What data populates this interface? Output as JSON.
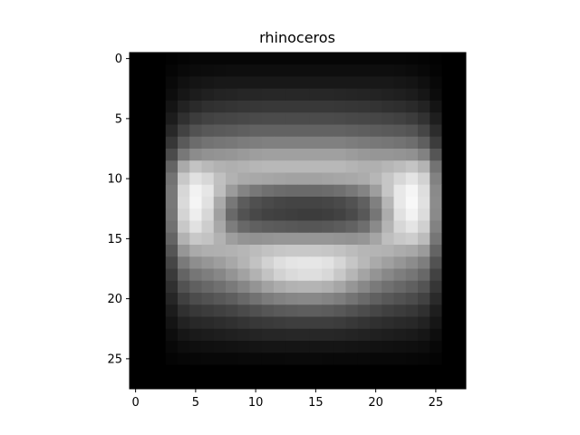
{
  "chart_data": {
    "type": "heatmap",
    "title": "rhinoceros",
    "xlabel": "",
    "ylabel": "",
    "colormap": "gray",
    "grid": false,
    "legend": "none",
    "xlim": [
      -0.5,
      27.5
    ],
    "ylim": [
      27.5,
      -0.5
    ],
    "x_ticks": [
      0,
      5,
      10,
      15,
      20,
      25
    ],
    "y_ticks": [
      0,
      5,
      10,
      15,
      20,
      25
    ],
    "rows": 28,
    "cols": 28,
    "value_range": [
      0,
      255
    ],
    "values": [
      [
        0,
        0,
        0,
        2,
        4,
        6,
        6,
        6,
        6,
        6,
        6,
        6,
        6,
        6,
        6,
        6,
        6,
        6,
        6,
        6,
        6,
        6,
        6,
        5,
        4,
        2,
        0,
        0
      ],
      [
        0,
        0,
        0,
        5,
        9,
        11,
        12,
        13,
        14,
        14,
        14,
        14,
        14,
        14,
        14,
        14,
        14,
        14,
        14,
        14,
        14,
        14,
        13,
        11,
        8,
        4,
        0,
        0
      ],
      [
        0,
        0,
        0,
        9,
        16,
        20,
        22,
        24,
        24,
        24,
        24,
        24,
        24,
        24,
        24,
        24,
        24,
        24,
        24,
        24,
        24,
        24,
        22,
        20,
        15,
        8,
        0,
        0
      ],
      [
        0,
        0,
        0,
        13,
        22,
        28,
        32,
        35,
        36,
        38,
        38,
        39,
        39,
        39,
        39,
        39,
        39,
        38,
        37,
        36,
        35,
        33,
        31,
        28,
        22,
        12,
        0,
        0
      ],
      [
        0,
        0,
        0,
        20,
        34,
        42,
        48,
        50,
        52,
        54,
        55,
        56,
        56,
        56,
        56,
        56,
        56,
        55,
        54,
        53,
        51,
        48,
        46,
        42,
        35,
        20,
        0,
        0
      ],
      [
        0,
        0,
        0,
        28,
        48,
        60,
        66,
        69,
        70,
        72,
        74,
        75,
        75,
        75,
        75,
        75,
        75,
        74,
        72,
        71,
        70,
        68,
        65,
        60,
        50,
        30,
        0,
        0
      ],
      [
        0,
        0,
        0,
        40,
        66,
        82,
        88,
        90,
        92,
        95,
        98,
        98,
        98,
        98,
        98,
        98,
        98,
        98,
        96,
        94,
        92,
        90,
        88,
        84,
        70,
        44,
        0,
        0
      ],
      [
        0,
        0,
        0,
        55,
        90,
        108,
        115,
        118,
        120,
        124,
        126,
        128,
        128,
        128,
        128,
        128,
        128,
        128,
        125,
        122,
        120,
        118,
        115,
        110,
        95,
        60,
        0,
        0
      ],
      [
        0,
        0,
        0,
        75,
        120,
        140,
        146,
        148,
        150,
        154,
        158,
        160,
        160,
        160,
        160,
        160,
        160,
        160,
        156,
        152,
        150,
        150,
        148,
        145,
        130,
        85,
        0,
        0
      ],
      [
        0,
        0,
        0,
        100,
        170,
        195,
        185,
        178,
        175,
        178,
        182,
        184,
        184,
        184,
        184,
        184,
        184,
        184,
        180,
        176,
        176,
        182,
        188,
        196,
        180,
        115,
        0,
        0
      ],
      [
        0,
        0,
        0,
        115,
        200,
        225,
        215,
        192,
        178,
        170,
        168,
        166,
        164,
        162,
        162,
        162,
        164,
        166,
        168,
        172,
        182,
        198,
        215,
        228,
        210,
        130,
        0,
        0
      ],
      [
        0,
        0,
        0,
        120,
        215,
        242,
        230,
        190,
        155,
        132,
        120,
        112,
        108,
        106,
        106,
        106,
        108,
        112,
        120,
        132,
        158,
        198,
        232,
        245,
        222,
        138,
        0,
        0
      ],
      [
        0,
        0,
        0,
        120,
        218,
        245,
        225,
        170,
        120,
        92,
        80,
        74,
        70,
        68,
        68,
        68,
        70,
        74,
        82,
        96,
        128,
        182,
        232,
        248,
        225,
        140,
        0,
        0
      ],
      [
        0,
        0,
        0,
        118,
        212,
        238,
        215,
        160,
        105,
        82,
        72,
        66,
        64,
        62,
        60,
        60,
        62,
        66,
        74,
        88,
        118,
        172,
        225,
        242,
        220,
        138,
        0,
        0
      ],
      [
        0,
        0,
        0,
        112,
        200,
        225,
        205,
        168,
        125,
        104,
        96,
        92,
        90,
        88,
        86,
        86,
        88,
        92,
        98,
        110,
        138,
        180,
        215,
        228,
        208,
        130,
        0,
        0
      ],
      [
        0,
        0,
        0,
        100,
        178,
        200,
        195,
        178,
        158,
        148,
        146,
        148,
        150,
        150,
        150,
        150,
        150,
        148,
        146,
        150,
        165,
        190,
        200,
        205,
        188,
        118,
        0,
        0
      ],
      [
        0,
        0,
        0,
        85,
        150,
        170,
        175,
        176,
        178,
        182,
        188,
        194,
        198,
        200,
        200,
        200,
        198,
        194,
        188,
        182,
        180,
        178,
        172,
        168,
        155,
        100,
        0,
        0
      ],
      [
        0,
        0,
        0,
        70,
        122,
        142,
        150,
        158,
        168,
        180,
        194,
        210,
        222,
        228,
        230,
        230,
        226,
        214,
        198,
        184,
        170,
        160,
        150,
        140,
        126,
        82,
        0,
        0
      ],
      [
        0,
        0,
        0,
        58,
        100,
        118,
        126,
        135,
        148,
        162,
        178,
        195,
        210,
        218,
        222,
        222,
        216,
        200,
        182,
        164,
        148,
        136,
        126,
        118,
        104,
        66,
        0,
        0
      ],
      [
        0,
        0,
        0,
        48,
        82,
        96,
        104,
        112,
        122,
        134,
        148,
        162,
        172,
        178,
        180,
        180,
        176,
        166,
        150,
        136,
        122,
        112,
        104,
        96,
        84,
        54,
        0,
        0
      ],
      [
        0,
        0,
        0,
        38,
        64,
        76,
        82,
        88,
        94,
        104,
        114,
        124,
        130,
        134,
        136,
        136,
        132,
        126,
        116,
        106,
        96,
        88,
        82,
        76,
        66,
        42,
        0,
        0
      ],
      [
        0,
        0,
        0,
        28,
        48,
        56,
        60,
        64,
        68,
        74,
        80,
        86,
        90,
        92,
        94,
        94,
        92,
        88,
        82,
        76,
        70,
        64,
        60,
        56,
        48,
        30,
        0,
        0
      ],
      [
        0,
        0,
        0,
        20,
        34,
        40,
        42,
        45,
        48,
        52,
        56,
        58,
        60,
        62,
        62,
        62,
        62,
        60,
        56,
        52,
        48,
        45,
        42,
        40,
        34,
        22,
        0,
        0
      ],
      [
        0,
        0,
        0,
        13,
        22,
        26,
        28,
        30,
        32,
        34,
        36,
        38,
        38,
        39,
        39,
        39,
        39,
        38,
        36,
        34,
        32,
        30,
        28,
        26,
        22,
        14,
        0,
        0
      ],
      [
        0,
        0,
        0,
        8,
        13,
        15,
        16,
        17,
        18,
        19,
        20,
        21,
        21,
        21,
        21,
        21,
        21,
        21,
        20,
        19,
        18,
        17,
        16,
        15,
        13,
        8,
        0,
        0
      ],
      [
        0,
        0,
        0,
        4,
        6,
        7,
        8,
        8,
        8,
        9,
        9,
        9,
        9,
        10,
        10,
        10,
        9,
        9,
        9,
        9,
        8,
        8,
        8,
        7,
        6,
        4,
        0,
        0
      ],
      [
        0,
        0,
        0,
        0,
        0,
        0,
        0,
        0,
        0,
        0,
        0,
        0,
        0,
        0,
        0,
        0,
        0,
        0,
        0,
        0,
        0,
        0,
        0,
        0,
        0,
        0,
        0,
        0
      ],
      [
        0,
        0,
        0,
        0,
        0,
        0,
        0,
        0,
        0,
        0,
        0,
        0,
        0,
        0,
        0,
        0,
        0,
        0,
        0,
        0,
        0,
        0,
        0,
        0,
        0,
        0,
        0,
        0
      ]
    ]
  }
}
